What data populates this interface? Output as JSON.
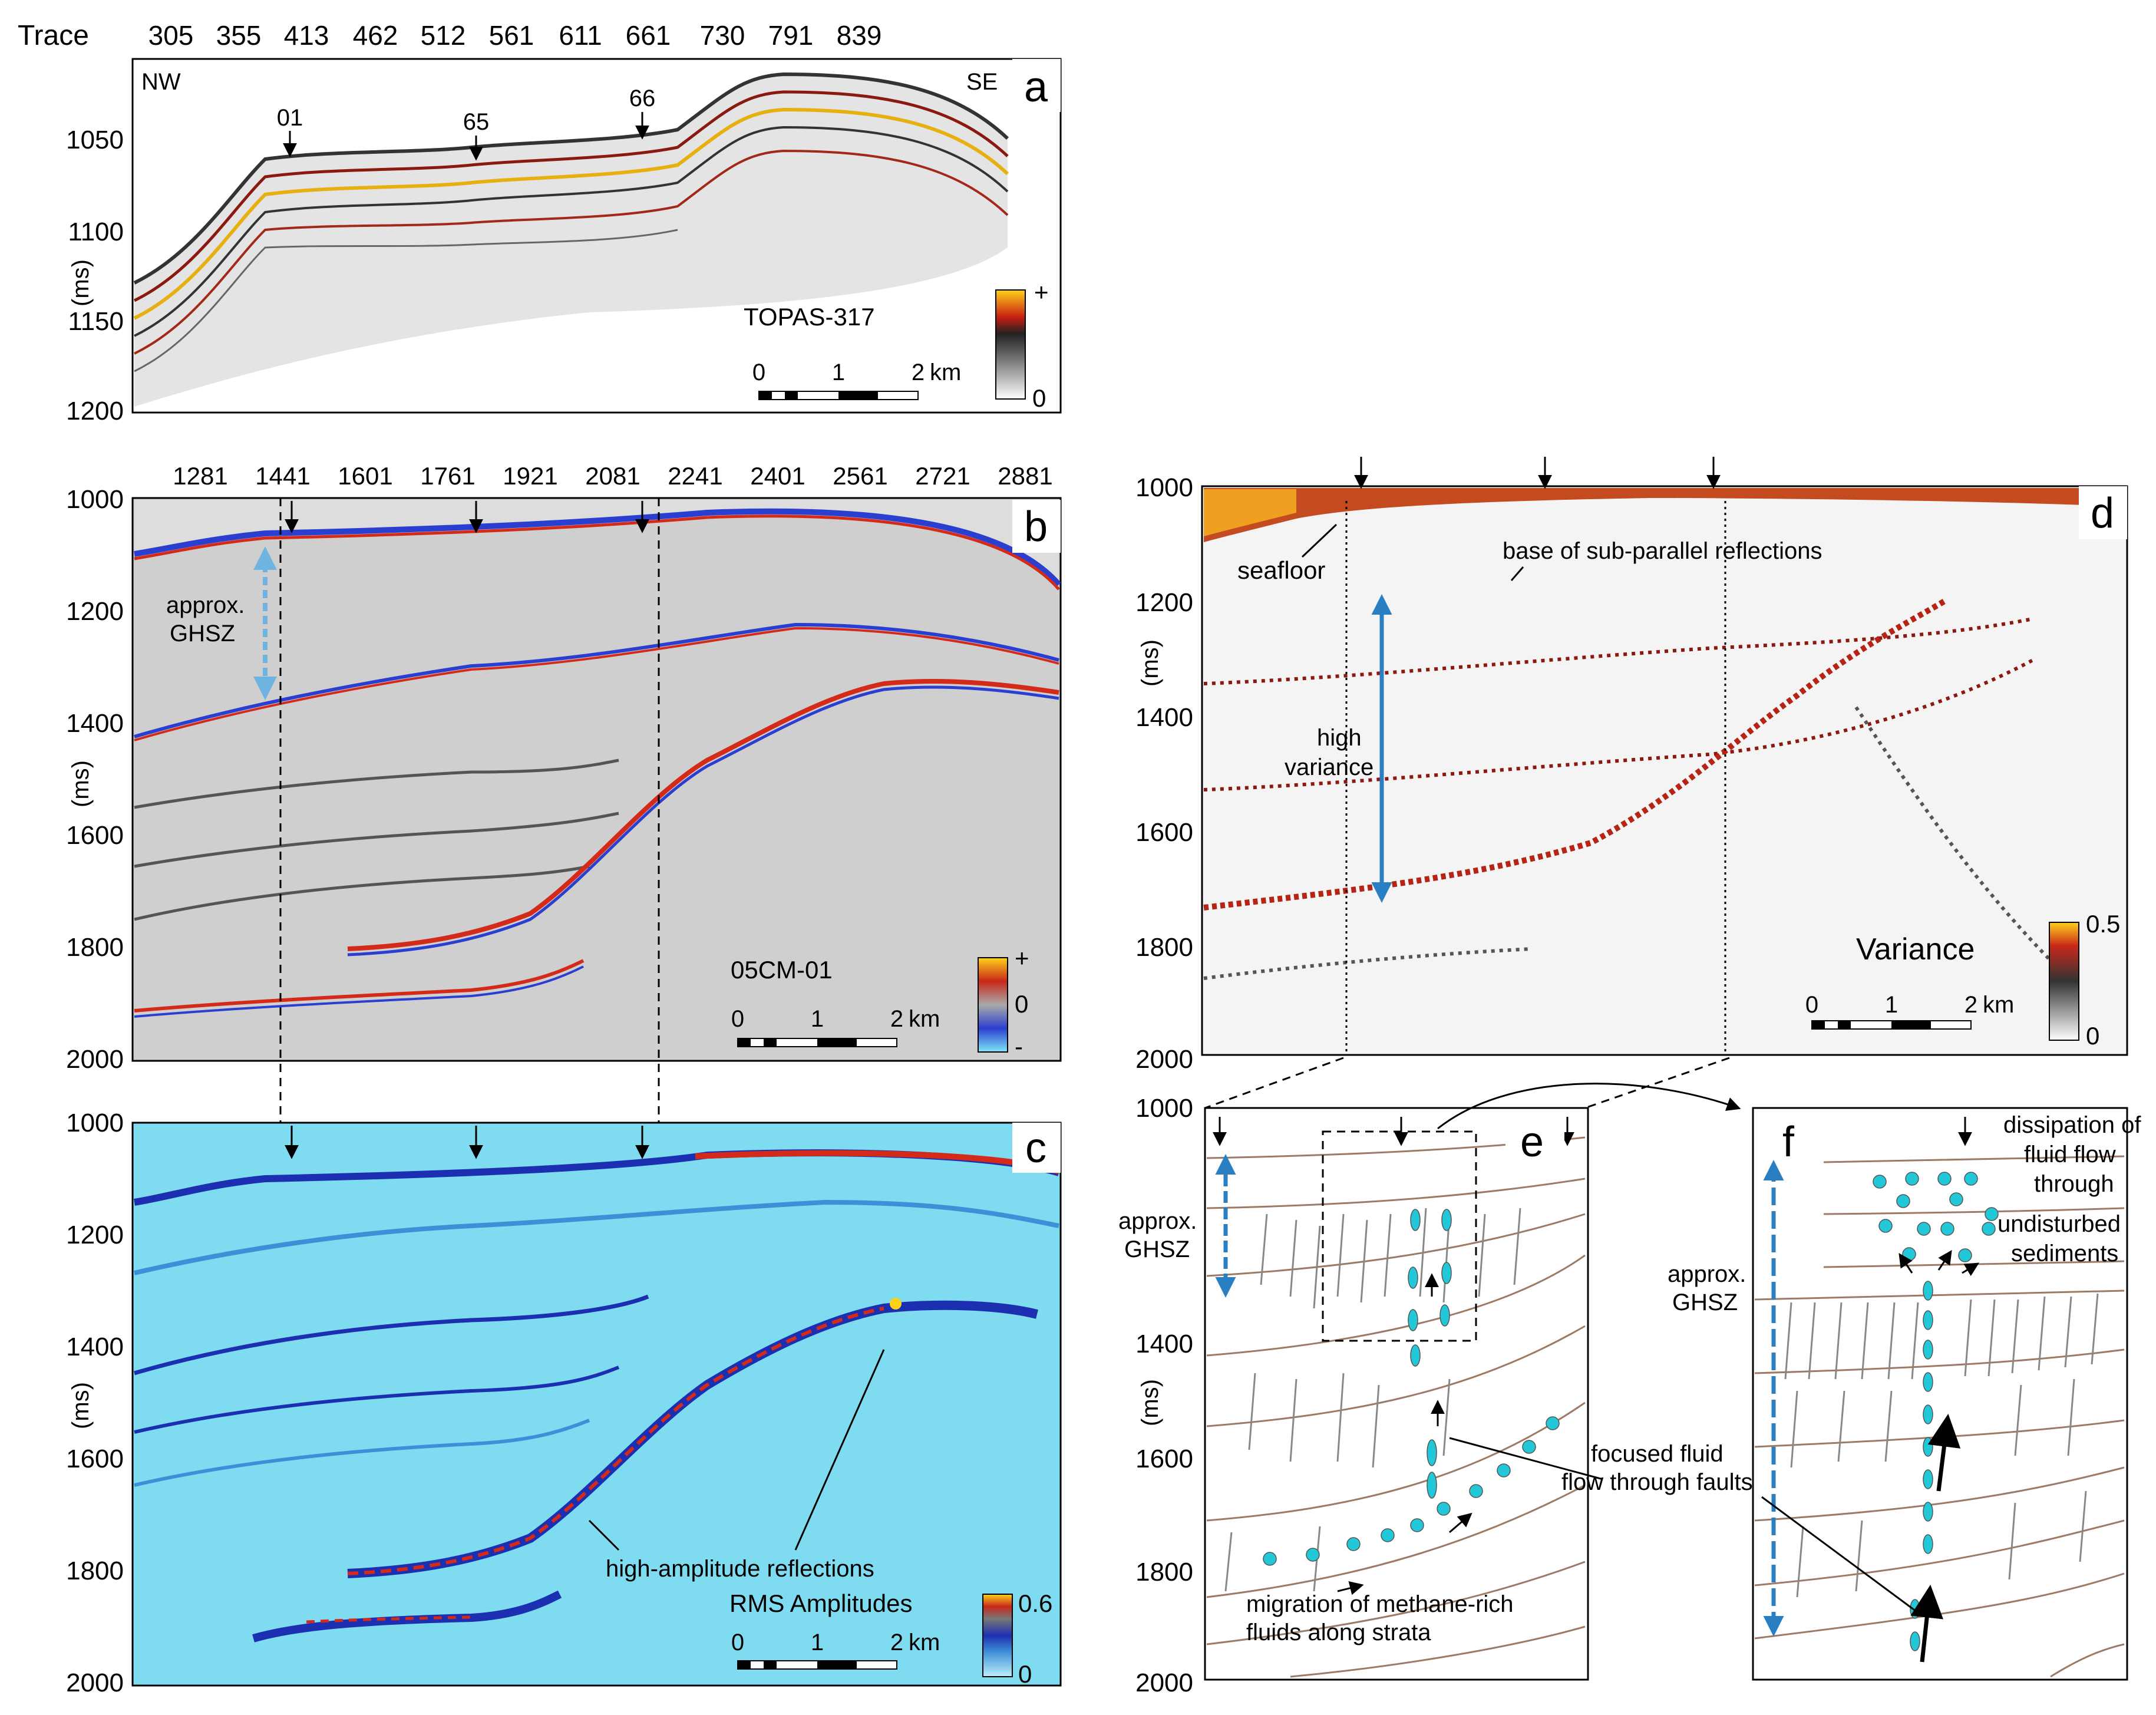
{
  "trace_label": "Trace",
  "units_label": "(ms)",
  "panel_a": {
    "letter": "a",
    "traces": [
      "305",
      "355",
      "413",
      "462",
      "512",
      "561",
      "611",
      "661",
      "730",
      "791",
      "839"
    ],
    "yticks": [
      "1050",
      "1100",
      "1150",
      "1200"
    ],
    "left_dir": "NW",
    "right_dir": "SE",
    "markers": [
      "01",
      "65",
      "66"
    ],
    "profile": "TOPAS-317",
    "cb_top": "+",
    "cb_bot": "0",
    "scale": [
      "0",
      "1",
      "2",
      "km"
    ]
  },
  "panel_b": {
    "letter": "b",
    "traces": [
      "1281",
      "1441",
      "1601",
      "1761",
      "1921",
      "2081",
      "2241",
      "2401",
      "2561",
      "2721",
      "2881"
    ],
    "yticks": [
      "1000",
      "1200",
      "1400",
      "1600",
      "1800",
      "2000"
    ],
    "ghsz_1": "approx.",
    "ghsz_2": "GHSZ",
    "profile": "05CM-01",
    "cb_top": "+",
    "cb_mid": "0",
    "cb_bot": "-",
    "scale": [
      "0",
      "1",
      "2",
      "km"
    ]
  },
  "panel_c": {
    "letter": "c",
    "yticks": [
      "1000",
      "1200",
      "1400",
      "1600",
      "1800",
      "2000"
    ],
    "label_hamp": "high-amplitude reflections",
    "profile": "RMS Amplitudes",
    "cb_top": "0.6",
    "cb_bot": "0",
    "scale": [
      "0",
      "1",
      "2",
      "km"
    ]
  },
  "panel_d": {
    "letter": "d",
    "yticks": [
      "1000",
      "1200",
      "1400",
      "1600",
      "1800",
      "2000"
    ],
    "seafloor": "seafloor",
    "base": "base of sub-parallel reflections",
    "hv_1": "high",
    "hv_2": "variance",
    "profile": "Variance",
    "cb_top": "0.5",
    "cb_bot": "0",
    "scale": [
      "0",
      "1",
      "2",
      "km"
    ]
  },
  "panel_e": {
    "letter": "e",
    "yticks": [
      "1000",
      "1200",
      "1400",
      "1600",
      "1800",
      "2000"
    ],
    "ghsz_1": "approx.",
    "ghsz_2": "GHSZ",
    "focused_1": "focused fluid",
    "focused_2": "flow through faults",
    "migration_1": "migration of methane-rich",
    "migration_2": "fluids along strata"
  },
  "panel_f": {
    "letter": "f",
    "ghsz_1": "approx.",
    "ghsz_2": "GHSZ",
    "diss_1": "dissipation of",
    "diss_2": "fluid flow",
    "diss_3": "through",
    "diss_4": "undisturbed",
    "diss_5": "sediments"
  },
  "colors": {
    "cyan_fluid": "#22c8d8",
    "arrow_blue": "#2a7fc2",
    "horizon_brown": "#9c7a64",
    "rms_bg": "#7fdcf0",
    "seismic_red": "#d42a1a",
    "seismic_blue": "#2a3fcf"
  }
}
